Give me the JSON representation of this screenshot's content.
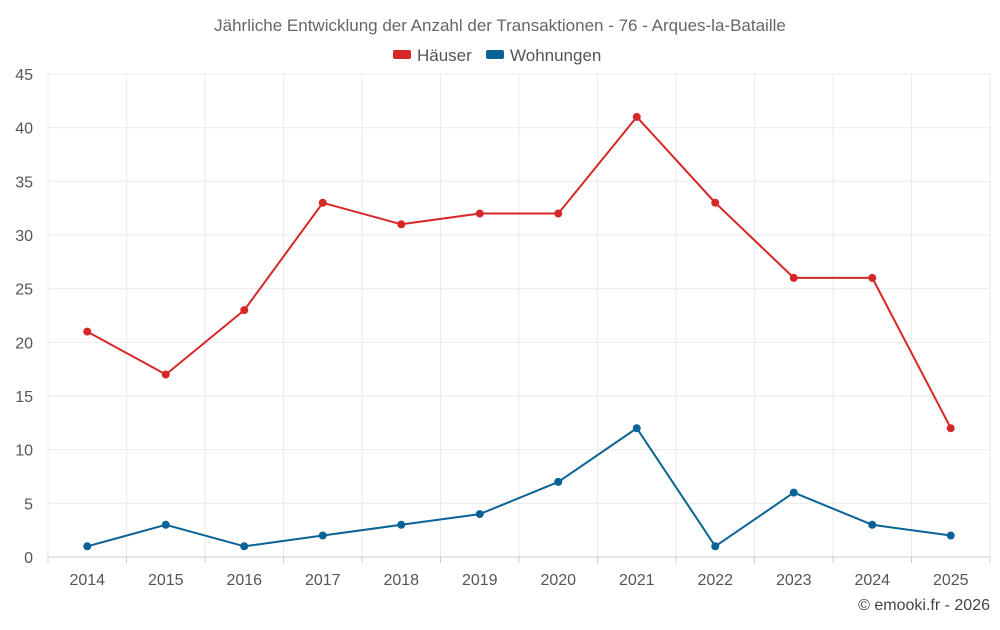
{
  "chart_data": {
    "type": "line",
    "title": "Jährliche Entwicklung der Anzahl der Transaktionen - 76 - Arques-la-Bataille",
    "categories": [
      "2014",
      "2015",
      "2016",
      "2017",
      "2018",
      "2019",
      "2020",
      "2021",
      "2022",
      "2023",
      "2024",
      "2025"
    ],
    "series": [
      {
        "name": "Häuser",
        "color": "#d62728",
        "values": [
          21,
          17,
          23,
          33,
          31,
          32,
          32,
          41,
          33,
          26,
          26,
          12
        ]
      },
      {
        "name": "Wohnungen",
        "color": "#0a6396",
        "values": [
          1,
          3,
          1,
          2,
          3,
          4,
          7,
          12,
          1,
          6,
          3,
          2
        ]
      }
    ],
    "ylim": [
      0,
      45
    ],
    "yticks": [
      "0",
      "5",
      "10",
      "15",
      "20",
      "25",
      "30",
      "35",
      "40",
      "45"
    ],
    "xlabel": "",
    "ylabel": "",
    "grid": true,
    "legend_position": "top-center"
  },
  "credit": "© emooki.fr - 2026"
}
